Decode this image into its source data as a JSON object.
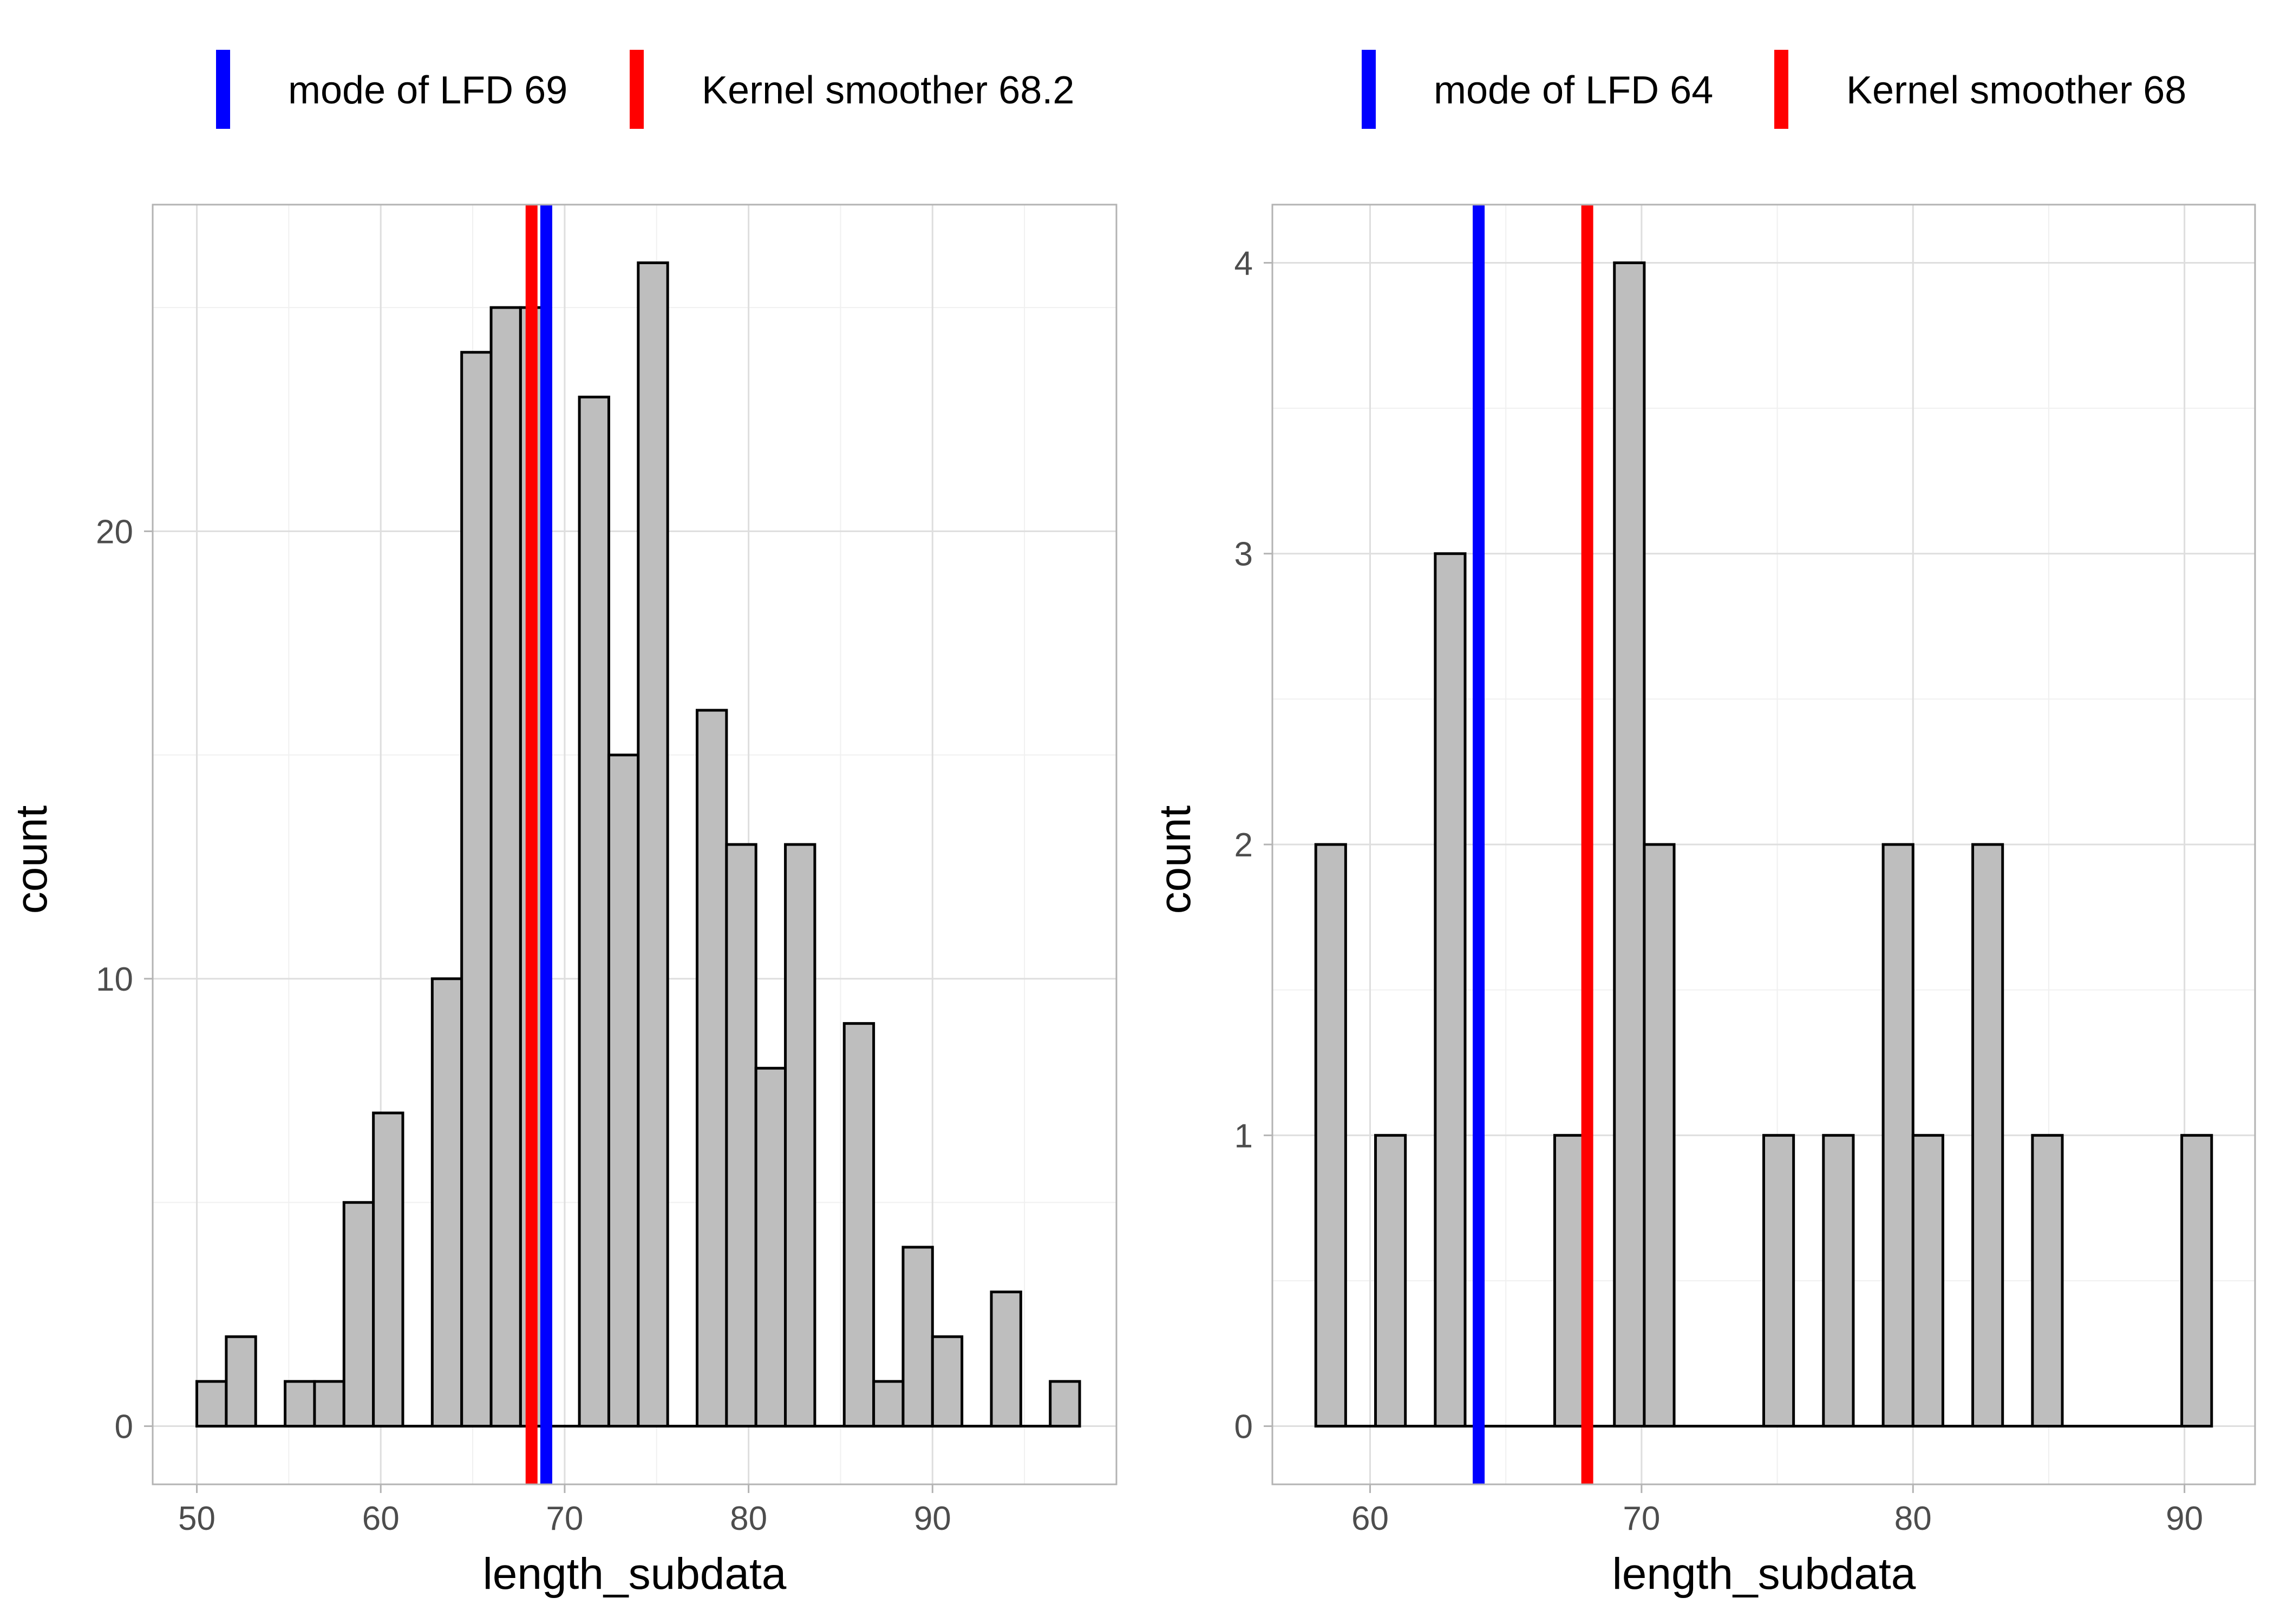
{
  "chart_data": [
    {
      "type": "bar",
      "xlabel": "length_subdata",
      "ylabel": "count",
      "xlim": [
        47.6,
        100.0
      ],
      "ylim": [
        -1.3,
        27.3
      ],
      "x_ticks": [
        "50",
        "60",
        "70",
        "80",
        "90"
      ],
      "x_tick_values": [
        50,
        60,
        70,
        80,
        90
      ],
      "y_ticks": [
        "0",
        "10",
        "20"
      ],
      "y_tick_values": [
        0,
        10,
        20
      ],
      "bin_width": 1.6,
      "bin_starts": [
        50.0,
        51.6,
        53.2,
        54.8,
        56.4,
        58.0,
        59.6,
        61.2,
        62.8,
        64.4,
        66.0,
        67.6,
        69.2,
        70.8,
        72.4,
        74.0,
        75.6,
        77.2,
        78.8,
        80.4,
        82.0,
        83.6,
        85.2,
        86.8,
        88.4,
        90.0,
        91.6,
        93.2,
        94.8,
        96.4
      ],
      "counts": [
        1,
        2,
        0,
        1,
        1,
        5,
        7,
        0,
        10,
        24,
        25,
        25,
        0,
        23,
        15,
        26,
        0,
        16,
        13,
        8,
        13,
        0,
        9,
        1,
        4,
        2,
        0,
        3,
        0,
        1
      ],
      "vlines": [
        {
          "label": "Kernel smoother 68.2",
          "x": 68.2,
          "color": "#ff0000"
        },
        {
          "label": "mode of LFD 69",
          "x": 69.0,
          "color": "#0000ff"
        }
      ],
      "legend": [
        {
          "label": "mode of LFD 69",
          "color": "#0000ff"
        },
        {
          "label": "Kernel smoother 68.2",
          "color": "#ff0000"
        }
      ],
      "legend_position": "top"
    },
    {
      "type": "bar",
      "xlabel": "length_subdata",
      "ylabel": "count",
      "xlim": [
        56.4,
        92.6
      ],
      "ylim": [
        -0.2,
        4.2
      ],
      "x_ticks": [
        "60",
        "70",
        "80",
        "90"
      ],
      "x_tick_values": [
        60,
        70,
        80,
        90
      ],
      "y_ticks": [
        "0",
        "1",
        "2",
        "3",
        "4"
      ],
      "y_tick_values": [
        0,
        1,
        2,
        3,
        4
      ],
      "bin_width": 1.1,
      "bin_starts": [
        58.0,
        59.1,
        60.2,
        61.3,
        62.4,
        63.5,
        64.6,
        65.7,
        66.8,
        67.9,
        69.0,
        70.1,
        71.2,
        72.3,
        73.4,
        74.5,
        75.6,
        76.7,
        77.8,
        78.9,
        80.0,
        81.1,
        82.2,
        83.3,
        84.4,
        85.5,
        86.6,
        87.7,
        88.8,
        89.9
      ],
      "counts": [
        2,
        0,
        1,
        0,
        3,
        0,
        0,
        0,
        1,
        0,
        4,
        2,
        0,
        0,
        0,
        1,
        0,
        1,
        0,
        2,
        1,
        0,
        2,
        0,
        1,
        0,
        0,
        0,
        0,
        1
      ],
      "vlines": [
        {
          "label": "mode of LFD 64",
          "x": 64.0,
          "color": "#0000ff"
        },
        {
          "label": "Kernel smoother 68",
          "x": 68.0,
          "color": "#ff0000"
        }
      ],
      "legend": [
        {
          "label": "mode of LFD 64",
          "color": "#0000ff"
        },
        {
          "label": "Kernel smoother 68",
          "color": "#ff0000"
        }
      ],
      "legend_position": "top"
    }
  ]
}
